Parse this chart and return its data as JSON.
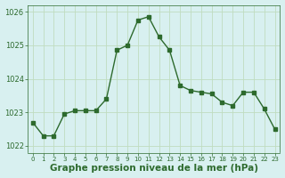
{
  "x": [
    0,
    1,
    2,
    3,
    4,
    5,
    6,
    7,
    8,
    9,
    10,
    11,
    12,
    13,
    14,
    15,
    16,
    17,
    18,
    19,
    20,
    21,
    22,
    23
  ],
  "y": [
    1022.7,
    1022.3,
    1022.3,
    1022.95,
    1023.05,
    1023.05,
    1023.05,
    1023.4,
    1024.85,
    1025.0,
    1025.75,
    1025.85,
    1025.25,
    1024.85,
    1023.8,
    1023.65,
    1023.6,
    1023.55,
    1023.3,
    1023.2,
    1023.6,
    1023.6,
    1023.1,
    1022.5
  ],
  "line_color": "#2d6a2d",
  "marker": "s",
  "markersize": 2.5,
  "linewidth": 1.0,
  "bg_color": "#d8f0f0",
  "grid_color": "#c0dcc0",
  "xlabel": "Graphe pression niveau de la mer (hPa)",
  "xlabel_fontsize": 7.5,
  "xlabel_fontweight": "bold",
  "yticks": [
    1022,
    1023,
    1024,
    1025,
    1026
  ],
  "xticks": [
    0,
    1,
    2,
    3,
    4,
    5,
    6,
    7,
    8,
    9,
    10,
    11,
    12,
    13,
    14,
    15,
    16,
    17,
    18,
    19,
    20,
    21,
    22,
    23
  ],
  "xlim": [
    -0.5,
    23.5
  ],
  "ylim": [
    1021.8,
    1026.2
  ],
  "x_tick_fontsize": 5.0,
  "y_tick_fontsize": 6.0
}
